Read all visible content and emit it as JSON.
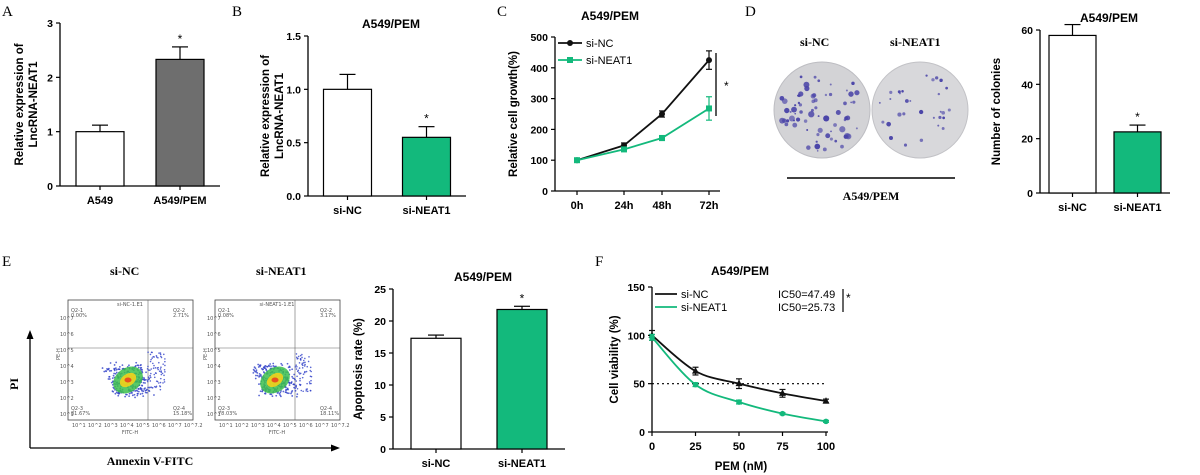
{
  "panel_labels": {
    "A": "A",
    "B": "B",
    "C": "C",
    "D": "D",
    "E": "E",
    "F": "F"
  },
  "colors": {
    "green": "#13b97c",
    "gray": "#6e6e6e",
    "black": "#111111",
    "white": "#ffffff",
    "dish": "#d3d3d6",
    "dots": "#4a44a8"
  },
  "images": {
    "colonies": {
      "left_label": "si-NC",
      "right_label": "si-NEAT1",
      "group_label": "A549/PEM"
    },
    "flow": {
      "left_label": "si-NC",
      "right_label": "si-NEAT1",
      "y_axis": "PI",
      "x_axis": "Annexin V-FITC",
      "plot_titles": [
        "si-NC-1.E1",
        "si-NEAT1-1.E1"
      ],
      "quadrants_left": [
        "Q2-1",
        "0.00%",
        "Q2-2",
        "2.71%",
        "Q2-3",
        "81.67%",
        "Q2-4",
        "15.18%"
      ],
      "quadrants_right": [
        "Q2-1",
        "0.08%",
        "Q2-2",
        "3.17%",
        "Q2-3",
        "78.03%",
        "Q2-4",
        "18.11%"
      ],
      "axis_tick_text": [
        "10^1",
        "10^2",
        "10^3",
        "10^4",
        "10^5",
        "10^6",
        "10^7",
        "10^7.2"
      ],
      "fitc": "FITC-H",
      "pe": "PE-H"
    }
  },
  "chart_data": [
    {
      "panel": "A",
      "type": "bar",
      "title": "",
      "categories": [
        "A549",
        "A549/PEM"
      ],
      "values": [
        1.0,
        2.33
      ],
      "errors": [
        0.12,
        0.23
      ],
      "bar_colors": [
        "#ffffff",
        "#6e6e6e"
      ],
      "ylabel": "Relative expression of\nLncRNA-NEAT1",
      "xlabel": "",
      "ylim": [
        0,
        3
      ],
      "yticks": [
        0,
        1,
        2,
        3
      ],
      "yticklabels": [
        "0",
        "1",
        "2",
        "3"
      ],
      "annotations": [
        "*"
      ]
    },
    {
      "panel": "B",
      "type": "bar",
      "title": "A549/PEM",
      "categories": [
        "si-NC",
        "si-NEAT1"
      ],
      "values": [
        1.0,
        0.55
      ],
      "errors": [
        0.14,
        0.1
      ],
      "bar_colors": [
        "#ffffff",
        "#13b97c"
      ],
      "ylabel": "Relative expression of\nLncRNA-NEAT1",
      "xlabel": "",
      "ylim": [
        0,
        1.5
      ],
      "yticks": [
        0,
        0.5,
        1.0,
        1.5
      ],
      "yticklabels": [
        "0.0",
        "0.5",
        "1.0",
        "1.5"
      ],
      "annotations": [
        "*"
      ]
    },
    {
      "panel": "C",
      "type": "line",
      "title": "A549/PEM",
      "x": [
        "0h",
        "24h",
        "48h",
        "72h"
      ],
      "series": [
        {
          "name": "si-NC",
          "values": [
            100,
            148,
            250,
            425
          ],
          "errors": [
            5,
            8,
            10,
            30
          ],
          "color": "#111111",
          "marker": "circle"
        },
        {
          "name": "si-NEAT1",
          "values": [
            100,
            135,
            172,
            268
          ],
          "errors": [
            5,
            6,
            8,
            38
          ],
          "color": "#13b97c",
          "marker": "square"
        }
      ],
      "ylabel": "Relative cell growth(%)",
      "xlabel": "",
      "ylim": [
        0,
        500
      ],
      "yticks": [
        0,
        100,
        200,
        300,
        400,
        500
      ],
      "yticklabels": [
        "0",
        "100",
        "200",
        "300",
        "400",
        "500"
      ],
      "legend": "top-left",
      "annotations": [
        "*"
      ]
    },
    {
      "panel": "D",
      "type": "bar",
      "title": "A549/PEM",
      "categories": [
        "si-NC",
        "si-NEAT1"
      ],
      "values": [
        58,
        22.5
      ],
      "errors": [
        4,
        2.5
      ],
      "bar_colors": [
        "#ffffff",
        "#13b97c"
      ],
      "ylabel": "Number of colonies",
      "xlabel": "",
      "ylim": [
        0,
        60
      ],
      "yticks": [
        0,
        20,
        40,
        60
      ],
      "yticklabels": [
        "0",
        "20",
        "40",
        "60"
      ],
      "annotations": [
        "*"
      ]
    },
    {
      "panel": "E",
      "type": "bar",
      "title": "A549/PEM",
      "categories": [
        "si-NC",
        "si-NEAT1"
      ],
      "values": [
        17.3,
        21.8
      ],
      "errors": [
        0.5,
        0.5
      ],
      "bar_colors": [
        "#ffffff",
        "#13b97c"
      ],
      "ylabel": "Apoptosis rate (%)",
      "xlabel": "",
      "ylim": [
        0,
        25
      ],
      "yticks": [
        0,
        5,
        10,
        15,
        20,
        25
      ],
      "yticklabels": [
        "0",
        "5",
        "10",
        "15",
        "20",
        "25"
      ],
      "annotations": [
        "*"
      ]
    },
    {
      "panel": "F",
      "type": "line",
      "title": "A549/PEM",
      "x": [
        0,
        25,
        50,
        75,
        100
      ],
      "series": [
        {
          "name": "si-NC",
          "values": [
            100,
            63,
            50,
            40,
            32
          ],
          "errors": [
            5,
            4,
            5,
            4,
            2
          ],
          "color": "#111111",
          "marker": "triangle",
          "ic50": "IC50=47.49"
        },
        {
          "name": "si-NEAT1",
          "values": [
            98,
            49,
            31,
            19,
            11
          ],
          "errors": [
            3,
            2,
            2,
            1,
            1
          ],
          "color": "#13b97c",
          "marker": "circle",
          "ic50": "IC50=25.73"
        }
      ],
      "ylabel": "Cell viability (%)",
      "xlabel": "PEM (nM)",
      "xlim": [
        0,
        100
      ],
      "ylim": [
        0,
        150
      ],
      "xticks": [
        0,
        25,
        50,
        75,
        100
      ],
      "xticklabels": [
        "0",
        "25",
        "50",
        "75",
        "100"
      ],
      "yticks": [
        0,
        50,
        100,
        150
      ],
      "yticklabels": [
        "0",
        "50",
        "100",
        "150"
      ],
      "reference_line": 50,
      "legend": "top-left",
      "annotations": [
        "*"
      ]
    }
  ]
}
